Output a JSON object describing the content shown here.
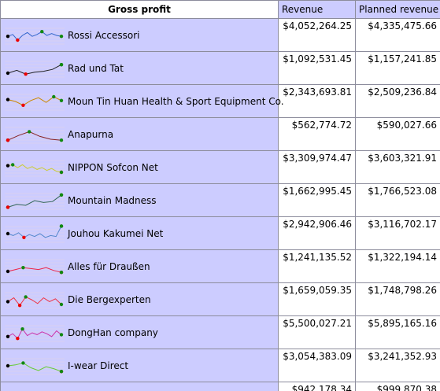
{
  "headers": {
    "gross_profit": "Gross profit",
    "revenue": "Revenue",
    "planned_revenue": "Planned revenue"
  },
  "rows": [
    {
      "name": "Rossi Accessori",
      "revenue": "$4,052,264.25",
      "planned": "$4,335,475.66",
      "color": "#3366cc",
      "spark": [
        0.55,
        0.45,
        0.75,
        0.5,
        0.35,
        0.55,
        0.45,
        0.3,
        0.5,
        0.4,
        0.5,
        0.55
      ]
    },
    {
      "name": "Rad und Tat",
      "revenue": "$1,092,531.45",
      "planned": "$1,157,241.85",
      "color": "#222222",
      "spark": [
        0.75,
        0.6,
        0.8,
        0.7,
        0.65,
        0.55,
        0.3
      ]
    },
    {
      "name": "Moun Tin Huan Health & Sport Equipment Co.",
      "revenue": "$2,343,693.81",
      "planned": "$2,509,236.84",
      "color": "#cc8800",
      "spark": [
        0.4,
        0.5,
        0.7,
        0.45,
        0.3,
        0.55,
        0.25,
        0.45
      ]
    },
    {
      "name": "Anapurna",
      "revenue": "$562,774.72",
      "planned": "$590,027.66",
      "color": "#882222",
      "spark": [
        0.8,
        0.55,
        0.35,
        0.6,
        0.75,
        0.8
      ]
    },
    {
      "name": "NIPPON Sofcon Net",
      "revenue": "$3,309,974.47",
      "planned": "$3,603,321.91",
      "color": "#cccc33",
      "spark": [
        0.4,
        0.35,
        0.5,
        0.35,
        0.55,
        0.45,
        0.6,
        0.5,
        0.65,
        0.55,
        0.7,
        0.75
      ]
    },
    {
      "name": "Mountain Madness",
      "revenue": "$1,662,995.45",
      "planned": "$1,766,523.08",
      "color": "#336655",
      "spark": [
        0.85,
        0.7,
        0.75,
        0.5,
        0.6,
        0.55,
        0.2
      ]
    },
    {
      "name": "Jouhou Kakumei Net",
      "revenue": "$2,942,906.46",
      "planned": "$3,116,702.17",
      "color": "#5588cc",
      "spark": [
        0.5,
        0.6,
        0.45,
        0.7,
        0.55,
        0.65,
        0.5,
        0.7,
        0.6,
        0.65,
        0.1
      ]
    },
    {
      "name": "Alles für Draußen",
      "revenue": "$1,241,135.52",
      "planned": "$1,322,194.14",
      "color": "#ee2244",
      "spark": [
        0.75,
        0.65,
        0.55,
        0.6,
        0.65,
        0.55,
        0.7,
        0.8
      ]
    },
    {
      "name": "Die Bergexperten",
      "revenue": "$1,659,059.35",
      "planned": "$1,748,798.26",
      "color": "#ee3344",
      "spark": [
        0.6,
        0.4,
        0.8,
        0.35,
        0.5,
        0.7,
        0.4,
        0.6,
        0.45,
        0.75
      ]
    },
    {
      "name": "DongHan company",
      "revenue": "$5,500,027.21",
      "planned": "$5,895,165.16",
      "color": "#cc33aa",
      "spark": [
        0.7,
        0.55,
        0.8,
        0.3,
        0.65,
        0.5,
        0.6,
        0.45,
        0.55,
        0.7,
        0.4,
        0.6
      ]
    },
    {
      "name": "I-wear Direct",
      "revenue": "$3,054,383.09",
      "planned": "$3,241,352.93",
      "color": "#66cc33",
      "spark": [
        0.5,
        0.45,
        0.35,
        0.6,
        0.75,
        0.55,
        0.65,
        0.8
      ]
    }
  ],
  "partial_row": {
    "revenue": "$942,178.34",
    "planned": "$999,870.38"
  },
  "marker_colors": {
    "start": "#000000",
    "min": "#ee0000",
    "max": "#118811",
    "end": "#118811"
  }
}
